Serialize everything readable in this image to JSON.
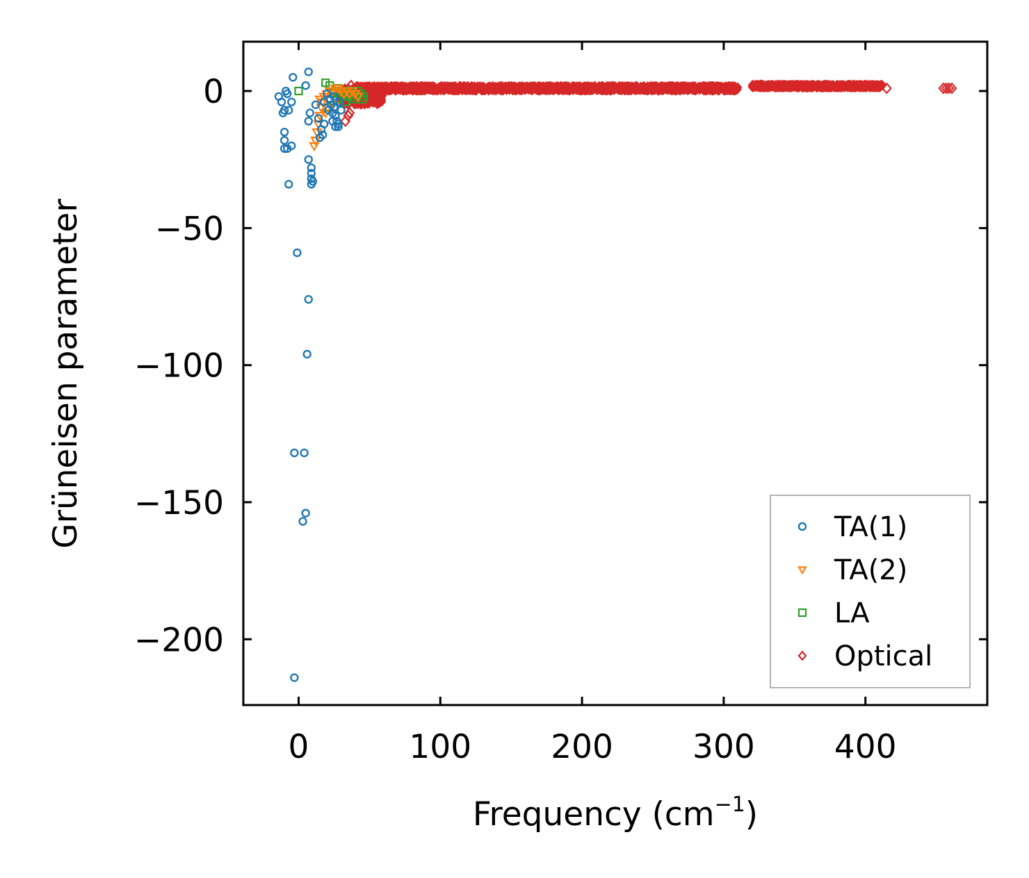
{
  "chart_data": {
    "type": "scatter",
    "title": "",
    "xlabel": "Frequency (cm",
    "xlabel_sup": "−1",
    "xlabel_close": ")",
    "ylabel": "Grüneisen parameter",
    "xlim": [
      -39,
      486
    ],
    "ylim": [
      -224,
      18
    ],
    "xticks": [
      0,
      100,
      200,
      300,
      400
    ],
    "xtick_labels": [
      "0",
      "100",
      "200",
      "300",
      "400"
    ],
    "yticks": [
      0,
      -50,
      -100,
      -150,
      -200
    ],
    "ytick_labels": [
      "0",
      "−50",
      "−100",
      "−150",
      "−200"
    ],
    "grid": false,
    "legend_position": "lower right",
    "series": [
      {
        "name": "TA(1)",
        "marker": "circle",
        "color": "#1f77b4",
        "points": [
          [
            -14,
            -2
          ],
          [
            -12,
            -4
          ],
          [
            -11,
            -8
          ],
          [
            -10,
            -7
          ],
          [
            -9,
            0
          ],
          [
            -8,
            -1
          ],
          [
            -7,
            -7
          ],
          [
            -5,
            -4
          ],
          [
            -4,
            5
          ],
          [
            -10,
            -15
          ],
          [
            -10,
            -18
          ],
          [
            -10,
            -21
          ],
          [
            -8,
            -21
          ],
          [
            -5,
            -20
          ],
          [
            -7,
            -34
          ],
          [
            5,
            2
          ],
          [
            7,
            7
          ],
          [
            7,
            -11
          ],
          [
            8,
            -8
          ],
          [
            7,
            -25
          ],
          [
            9,
            -28
          ],
          [
            9,
            -30
          ],
          [
            9,
            -32
          ],
          [
            9,
            -34
          ],
          [
            10,
            -33
          ],
          [
            12,
            -5
          ],
          [
            14,
            -10
          ],
          [
            15,
            -17
          ],
          [
            16,
            -14
          ],
          [
            17,
            -16
          ],
          [
            18,
            -12
          ],
          [
            20,
            -1
          ],
          [
            22,
            -3
          ],
          [
            23,
            -5
          ],
          [
            24,
            -8
          ],
          [
            25,
            -6
          ],
          [
            26,
            -9
          ],
          [
            27,
            -11
          ],
          [
            28,
            -13
          ],
          [
            29,
            -4
          ],
          [
            30,
            -7
          ],
          [
            18,
            -4
          ],
          [
            21,
            -7
          ],
          [
            25,
            -2
          ],
          [
            28,
            -12
          ],
          [
            26,
            -13
          ],
          [
            24,
            -11
          ],
          [
            -1,
            -59
          ],
          [
            7,
            -76
          ],
          [
            6,
            -96
          ],
          [
            -3,
            -132
          ],
          [
            4,
            -132
          ],
          [
            5,
            -154
          ],
          [
            3,
            -157
          ],
          [
            -3,
            -214
          ]
        ]
      },
      {
        "name": "TA(2)",
        "marker": "triangle-down",
        "color": "#ff7f0e",
        "points": [
          [
            11,
            -20
          ],
          [
            12,
            -18
          ],
          [
            13,
            -15
          ],
          [
            14,
            -12
          ],
          [
            15,
            -9
          ],
          [
            16,
            -6
          ],
          [
            17,
            -4
          ],
          [
            18,
            -2
          ],
          [
            20,
            -1
          ],
          [
            22,
            0
          ],
          [
            24,
            0
          ],
          [
            26,
            1
          ],
          [
            28,
            1
          ],
          [
            30,
            0
          ],
          [
            32,
            -1
          ],
          [
            34,
            0
          ],
          [
            36,
            -1
          ],
          [
            38,
            0
          ],
          [
            40,
            -1
          ],
          [
            42,
            -2
          ],
          [
            15,
            -3
          ],
          [
            19,
            -8
          ],
          [
            23,
            -5
          ]
        ]
      },
      {
        "name": "LA",
        "marker": "square",
        "color": "#2ca02c",
        "points": [
          [
            0,
            0
          ],
          [
            19,
            3
          ],
          [
            22,
            2
          ],
          [
            24,
            -1
          ],
          [
            26,
            0
          ],
          [
            28,
            1
          ],
          [
            30,
            0
          ],
          [
            32,
            -1
          ],
          [
            34,
            -2
          ],
          [
            36,
            0
          ],
          [
            38,
            -1
          ],
          [
            40,
            -2
          ],
          [
            42,
            0
          ],
          [
            44,
            -1
          ],
          [
            46,
            -2
          ],
          [
            20,
            -6
          ],
          [
            27,
            -3
          ],
          [
            33,
            -4
          ],
          [
            39,
            -3
          ],
          [
            45,
            -3
          ]
        ]
      },
      {
        "name": "Optical",
        "marker": "diamond",
        "color": "#d62728",
        "bands": [
          {
            "x_start": 30,
            "x_end": 60,
            "y_center": -2,
            "y_spread": 6
          },
          {
            "x_start": 40,
            "x_end": 310,
            "y_center": 1,
            "y_spread": 1.6
          },
          {
            "x_start": 320,
            "x_end": 412,
            "y_center": 1.8,
            "y_spread": 1.0
          }
        ],
        "points": [
          [
            37,
            2
          ],
          [
            35,
            -9
          ],
          [
            33,
            -11
          ],
          [
            36,
            -8
          ],
          [
            415,
            1
          ],
          [
            455,
            1
          ],
          [
            457,
            1
          ],
          [
            459,
            1
          ],
          [
            461,
            1
          ]
        ]
      }
    ]
  }
}
